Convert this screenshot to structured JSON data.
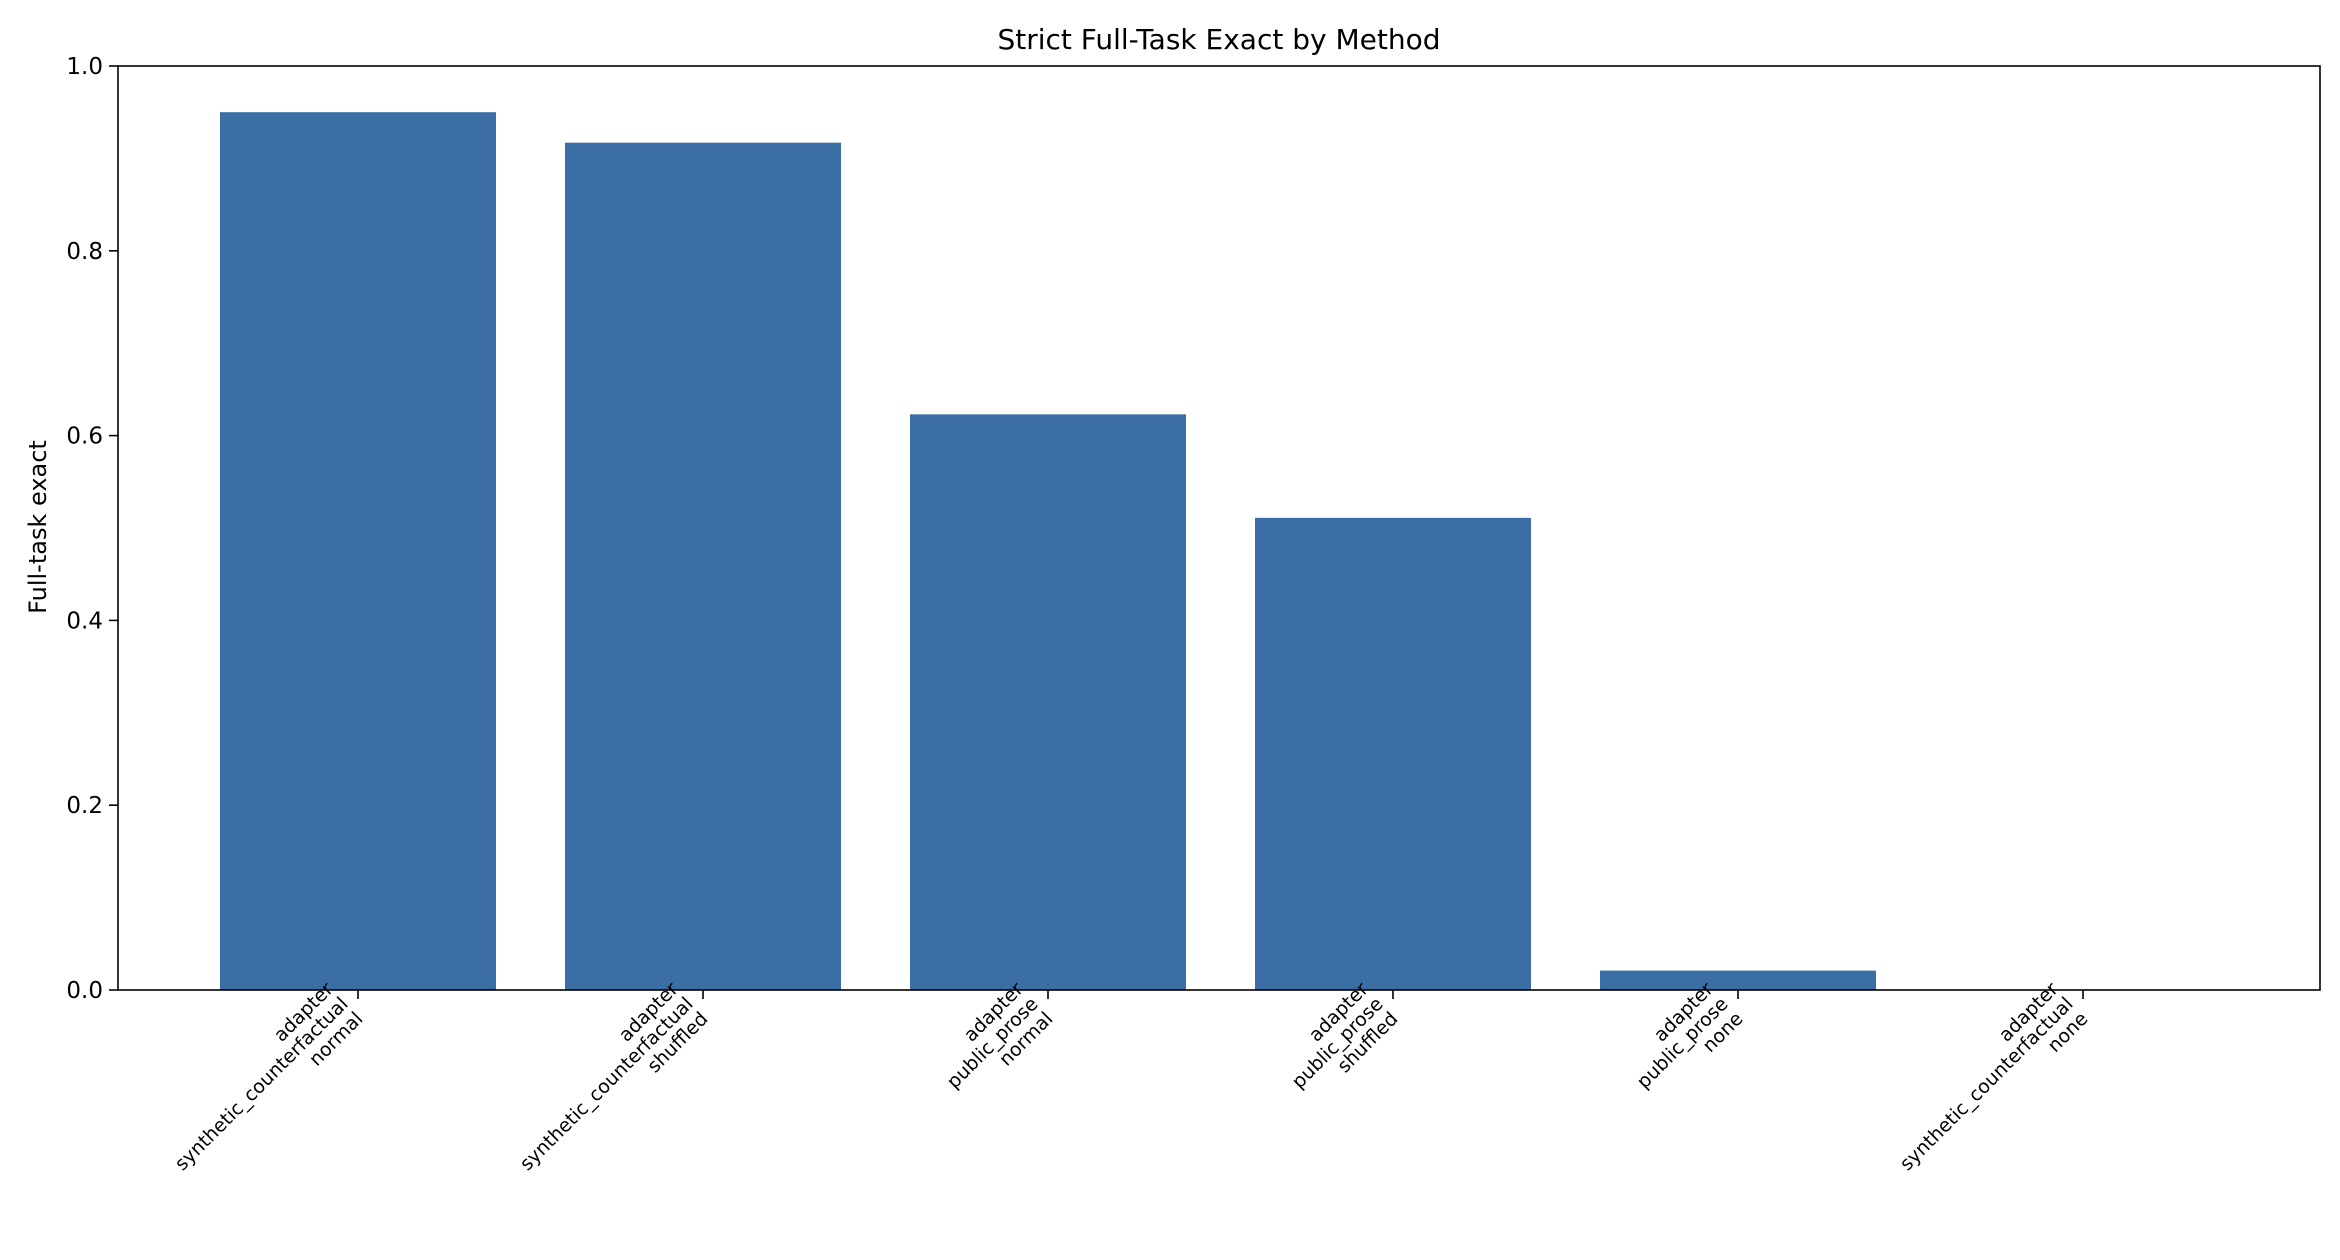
{
  "chart_data": {
    "type": "bar",
    "title": "Strict Full-Task Exact by Method",
    "xlabel": "",
    "ylabel": "Full-task exact",
    "ylim": [
      0,
      1.0
    ],
    "yticks": [
      "0.0",
      "0.2",
      "0.4",
      "0.6",
      "0.8",
      "1.0"
    ],
    "grid": false,
    "categories": [
      [
        "adapter",
        "synthetic_counterfactual",
        "normal"
      ],
      [
        "adapter",
        "synthetic_counterfactual",
        "shuffled"
      ],
      [
        "adapter",
        "public_prose",
        "normal"
      ],
      [
        "adapter",
        "public_prose",
        "shuffled"
      ],
      [
        "adapter",
        "public_prose",
        "none"
      ],
      [
        "adapter",
        "synthetic_counterfactual",
        "none"
      ]
    ],
    "values": [
      0.95,
      0.917,
      0.623,
      0.511,
      0.021,
      0.0
    ],
    "bar_color": "#3b6ea5"
  }
}
